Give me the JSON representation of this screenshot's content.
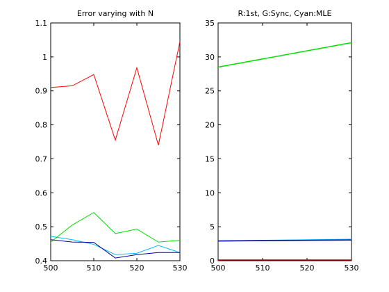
{
  "chart_data": [
    {
      "type": "line",
      "title": "Error varying with N",
      "xlabel": "",
      "ylabel": "",
      "xlim": [
        500,
        530
      ],
      "ylim": [
        0.4,
        1.1
      ],
      "xticks": [
        500,
        510,
        520,
        530
      ],
      "xtick_labels": [
        "500",
        "510",
        "520",
        "530"
      ],
      "yticks": [
        0.4,
        0.5,
        0.6,
        0.7,
        0.8,
        0.9,
        1.0,
        1.1
      ],
      "ytick_labels": [
        "0.4",
        "0.5",
        "0.6",
        "0.7",
        "0.8",
        "0.9",
        "1",
        "1.1"
      ],
      "grid": false,
      "x": [
        500,
        505,
        510,
        515,
        520,
        525,
        530
      ],
      "series": [
        {
          "color": "#ff0000",
          "values": [
            0.91,
            0.915,
            0.948,
            0.755,
            0.968,
            0.74,
            1.045
          ]
        },
        {
          "color": "#00e000",
          "values": [
            0.455,
            0.505,
            0.542,
            0.48,
            0.493,
            0.455,
            0.46
          ]
        },
        {
          "color": "#00bfff",
          "values": [
            0.472,
            0.462,
            0.448,
            0.418,
            0.422,
            0.445,
            0.424
          ]
        },
        {
          "color": "#0000a0",
          "values": [
            0.462,
            0.455,
            0.454,
            0.408,
            0.418,
            0.424,
            0.424
          ]
        }
      ]
    },
    {
      "type": "line",
      "title": "R:1st, G:Sync, Cyan:MLE",
      "xlabel": "",
      "ylabel": "",
      "xlim": [
        500,
        530
      ],
      "ylim": [
        0,
        35
      ],
      "xticks": [
        500,
        510,
        520,
        530
      ],
      "xtick_labels": [
        "500",
        "510",
        "520",
        "530"
      ],
      "yticks": [
        0,
        5,
        10,
        15,
        20,
        25,
        30,
        35
      ],
      "ytick_labels": [
        "0",
        "5",
        "10",
        "15",
        "20",
        "25",
        "30",
        "35"
      ],
      "grid": false,
      "x": [
        500,
        530
      ],
      "series": [
        {
          "color": "#00e000",
          "values": [
            28.5,
            32.1
          ]
        },
        {
          "color": "#00bfff",
          "values": [
            2.9,
            3.15
          ]
        },
        {
          "color": "#0000a0",
          "values": [
            2.9,
            3.05
          ]
        },
        {
          "color": "#a00000",
          "values": [
            0.1,
            0.1
          ]
        }
      ]
    }
  ]
}
